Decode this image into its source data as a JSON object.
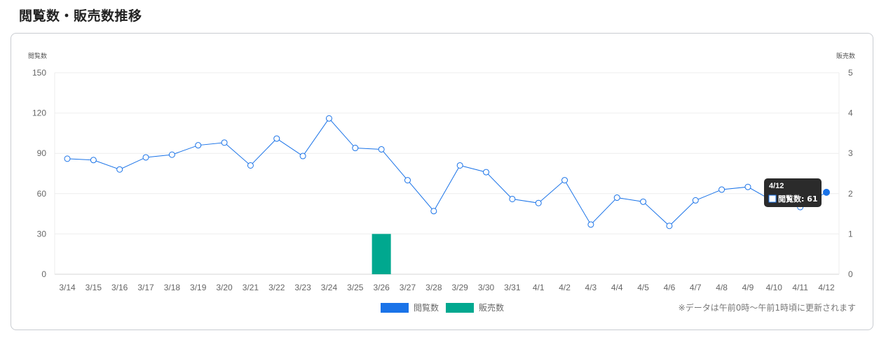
{
  "page": {
    "title": "閲覧数・販売数推移"
  },
  "chart_data": {
    "type": "bar-line",
    "categories": [
      "3/14",
      "3/15",
      "3/16",
      "3/17",
      "3/18",
      "3/19",
      "3/20",
      "3/21",
      "3/22",
      "3/23",
      "3/24",
      "3/25",
      "3/26",
      "3/27",
      "3/28",
      "3/29",
      "3/30",
      "3/31",
      "4/1",
      "4/2",
      "4/3",
      "4/4",
      "4/5",
      "4/6",
      "4/7",
      "4/8",
      "4/9",
      "4/10",
      "4/11",
      "4/12"
    ],
    "series": [
      {
        "name": "閲覧数",
        "type": "line",
        "axis": "left",
        "color": "#1a73e8",
        "values": [
          86,
          85,
          78,
          87,
          89,
          96,
          98,
          81,
          101,
          88,
          116,
          94,
          93,
          70,
          47,
          81,
          76,
          56,
          53,
          70,
          37,
          57,
          54,
          36,
          55,
          63,
          65,
          54,
          50,
          61
        ]
      },
      {
        "name": "販売数",
        "type": "bar",
        "axis": "right",
        "color": "#00a88f",
        "values": [
          0,
          0,
          0,
          0,
          0,
          0,
          0,
          0,
          0,
          0,
          0,
          0,
          1,
          0,
          0,
          0,
          0,
          0,
          0,
          0,
          0,
          0,
          0,
          0,
          0,
          0,
          0,
          0,
          0,
          0
        ]
      }
    ],
    "ylabel_left": "閲覧数",
    "ylabel_right": "販売数",
    "ylim_left": [
      0,
      150
    ],
    "ylim_right": [
      0,
      5
    ],
    "yticks_left": [
      "150",
      "120",
      "90",
      "60",
      "30",
      "0"
    ],
    "yticks_right": [
      "5",
      "4",
      "3",
      "2",
      "1",
      "0"
    ],
    "grid": true,
    "legend_position": "bottom-center",
    "note": "※データは午前0時〜午前1時頃に更新されます",
    "tooltip": {
      "title": "4/12",
      "label": "閲覧数: 61",
      "index": 29
    }
  }
}
